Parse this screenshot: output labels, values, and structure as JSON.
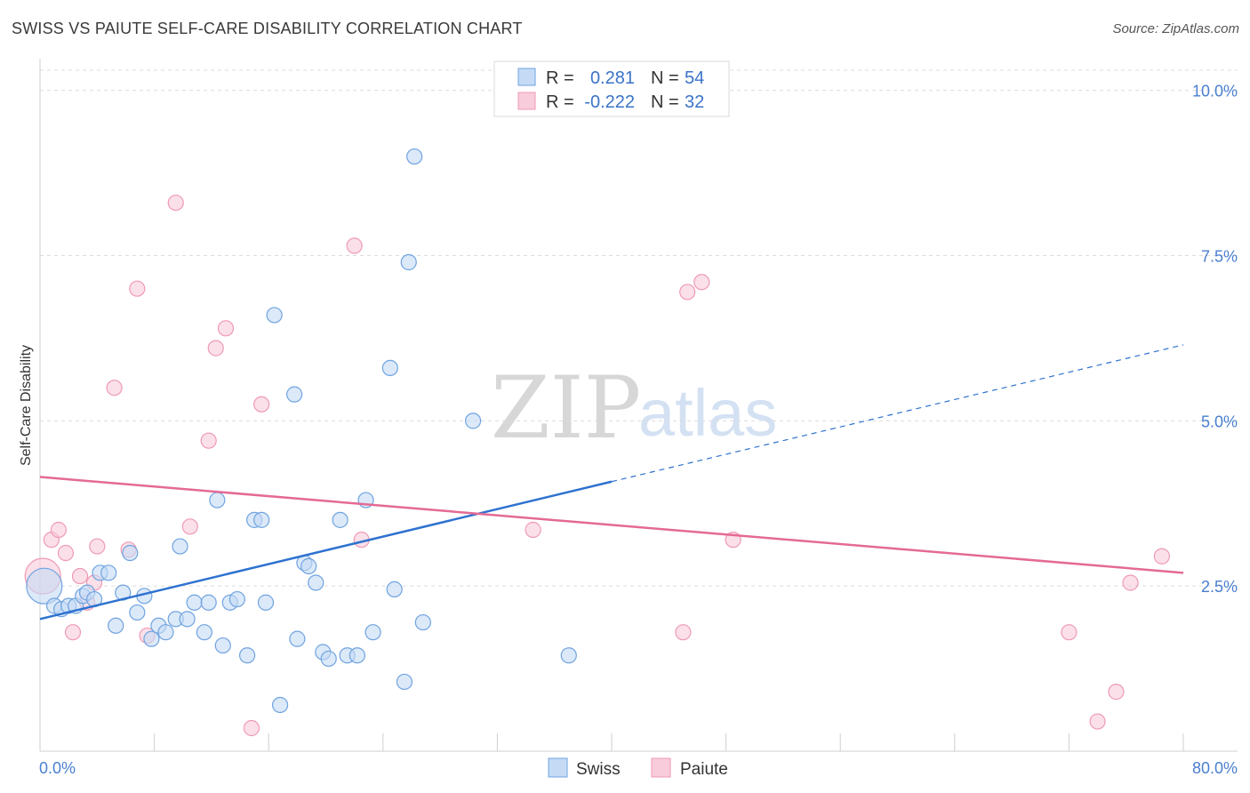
{
  "title": "SWISS VS PAIUTE SELF-CARE DISABILITY CORRELATION CHART",
  "source": "Source: ZipAtlas.com",
  "chart_data": {
    "type": "scatter",
    "ylabel": "Self-Care Disability",
    "xlim": [
      0,
      80
    ],
    "ylim": [
      0,
      10.4
    ],
    "y_ticks": [
      {
        "value": 2.5,
        "label": "2.5%"
      },
      {
        "value": 5.0,
        "label": "5.0%"
      },
      {
        "value": 7.5,
        "label": "7.5%"
      },
      {
        "value": 10.0,
        "label": "10.0%"
      }
    ],
    "x_tick_labels": {
      "min": "0.0%",
      "max": "80.0%"
    },
    "grid": true,
    "legend": {
      "placement": "top-center",
      "rows": [
        {
          "r_label": "R =",
          "r_value": "0.281",
          "n_label": "N =",
          "n_value": "54"
        },
        {
          "r_label": "R =",
          "r_value": "-0.222",
          "n_label": "N =",
          "n_value": "32"
        }
      ]
    },
    "series": [
      {
        "name": "Swiss",
        "color": "#6fa3e0",
        "fill": "#c5dbf5",
        "trend_color": "#2e72d0",
        "trend": {
          "x0": 0,
          "y0": 2.0,
          "x1": 40,
          "y1": 4.08,
          "dash_to_x": 80,
          "dash_to_y": 6.15
        },
        "points": [
          [
            0.3,
            2.5
          ],
          [
            1.0,
            2.2
          ],
          [
            1.5,
            2.15
          ],
          [
            2.0,
            2.2
          ],
          [
            2.5,
            2.2
          ],
          [
            3.0,
            2.35
          ],
          [
            3.3,
            2.4
          ],
          [
            3.8,
            2.3
          ],
          [
            4.2,
            2.7
          ],
          [
            4.8,
            2.7
          ],
          [
            5.3,
            1.9
          ],
          [
            5.8,
            2.4
          ],
          [
            6.3,
            3.0
          ],
          [
            6.8,
            2.1
          ],
          [
            7.3,
            2.35
          ],
          [
            7.8,
            1.7
          ],
          [
            8.3,
            1.9
          ],
          [
            8.8,
            1.8
          ],
          [
            9.5,
            2.0
          ],
          [
            9.8,
            3.1
          ],
          [
            10.3,
            2.0
          ],
          [
            10.8,
            2.25
          ],
          [
            11.5,
            1.8
          ],
          [
            11.8,
            2.25
          ],
          [
            12.4,
            3.8
          ],
          [
            12.8,
            1.6
          ],
          [
            13.3,
            2.25
          ],
          [
            13.8,
            2.3
          ],
          [
            14.5,
            1.45
          ],
          [
            15.0,
            3.5
          ],
          [
            15.5,
            3.5
          ],
          [
            15.8,
            2.25
          ],
          [
            16.4,
            6.6
          ],
          [
            16.8,
            0.7
          ],
          [
            17.8,
            5.4
          ],
          [
            18.0,
            1.7
          ],
          [
            18.5,
            2.85
          ],
          [
            18.8,
            2.8
          ],
          [
            19.3,
            2.55
          ],
          [
            19.8,
            1.5
          ],
          [
            20.2,
            1.4
          ],
          [
            21.0,
            3.5
          ],
          [
            21.5,
            1.45
          ],
          [
            22.2,
            1.45
          ],
          [
            22.8,
            3.8
          ],
          [
            23.3,
            1.8
          ],
          [
            24.5,
            5.8
          ],
          [
            24.8,
            2.45
          ],
          [
            25.5,
            1.05
          ],
          [
            25.8,
            7.4
          ],
          [
            26.2,
            9.0
          ],
          [
            26.8,
            1.95
          ],
          [
            30.3,
            5.0
          ],
          [
            37.0,
            1.45
          ]
        ]
      },
      {
        "name": "Paiute",
        "color": "#ef9ab3",
        "fill": "#f9ccdb",
        "trend_color": "#e46a94",
        "trend": {
          "x0": 0,
          "y0": 4.15,
          "x1": 80,
          "y1": 2.7
        },
        "points": [
          [
            0.2,
            2.65
          ],
          [
            0.8,
            3.2
          ],
          [
            1.3,
            3.35
          ],
          [
            1.8,
            3.0
          ],
          [
            2.3,
            1.8
          ],
          [
            2.8,
            2.65
          ],
          [
            3.3,
            2.25
          ],
          [
            3.8,
            2.55
          ],
          [
            4.0,
            3.1
          ],
          [
            5.2,
            5.5
          ],
          [
            6.2,
            3.05
          ],
          [
            6.8,
            7.0
          ],
          [
            7.5,
            1.75
          ],
          [
            9.5,
            8.3
          ],
          [
            10.5,
            3.4
          ],
          [
            11.8,
            4.7
          ],
          [
            12.3,
            6.1
          ],
          [
            13.0,
            6.4
          ],
          [
            14.8,
            0.35
          ],
          [
            15.5,
            5.25
          ],
          [
            22.0,
            7.65
          ],
          [
            22.5,
            3.2
          ],
          [
            34.5,
            3.35
          ],
          [
            45.0,
            1.8
          ],
          [
            45.3,
            6.95
          ],
          [
            46.3,
            7.1
          ],
          [
            48.5,
            3.2
          ],
          [
            72.0,
            1.8
          ],
          [
            74.0,
            0.45
          ],
          [
            75.3,
            0.9
          ],
          [
            76.3,
            2.55
          ],
          [
            78.5,
            2.95
          ]
        ]
      }
    ]
  },
  "watermark": {
    "zip": "ZIP",
    "atlas": "atlas"
  }
}
